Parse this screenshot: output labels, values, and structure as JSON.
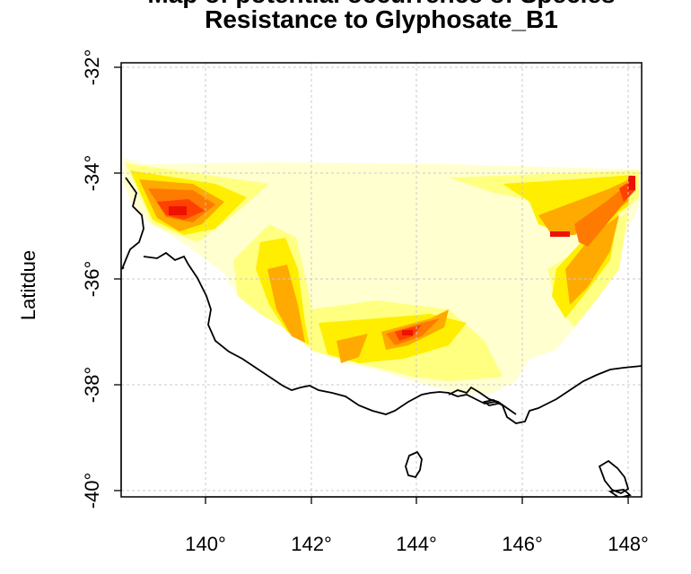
{
  "title": {
    "line1": "Map of potential occurrence of Species",
    "line2": "Resistance to Glyphosate_B1"
  },
  "axes": {
    "ylabel": "Latitdue",
    "x_ticks": [
      "140°",
      "142°",
      "144°",
      "146°",
      "148°"
    ],
    "y_ticks": [
      "-32°",
      "-34°",
      "-36°",
      "-38°",
      "-40°"
    ]
  },
  "map_data": {
    "type": "raster-heatmap",
    "lon_range": [
      138.4,
      148.3
    ],
    "lat_range": [
      -40.1,
      -31.9
    ],
    "tick_lons": [
      140,
      142,
      144,
      146,
      148
    ],
    "tick_lats": [
      -32,
      -34,
      -36,
      -38,
      -40
    ],
    "grid": true,
    "colors": {
      "level1": "#ffffd0",
      "level2": "#ffff80",
      "level3": "#ffee00",
      "level4": "#ffaa00",
      "level5": "#ff7a00",
      "level6": "#ff4000",
      "level7": "#ee1100",
      "coast": "#000000",
      "grid": "#c8c8c8"
    }
  }
}
